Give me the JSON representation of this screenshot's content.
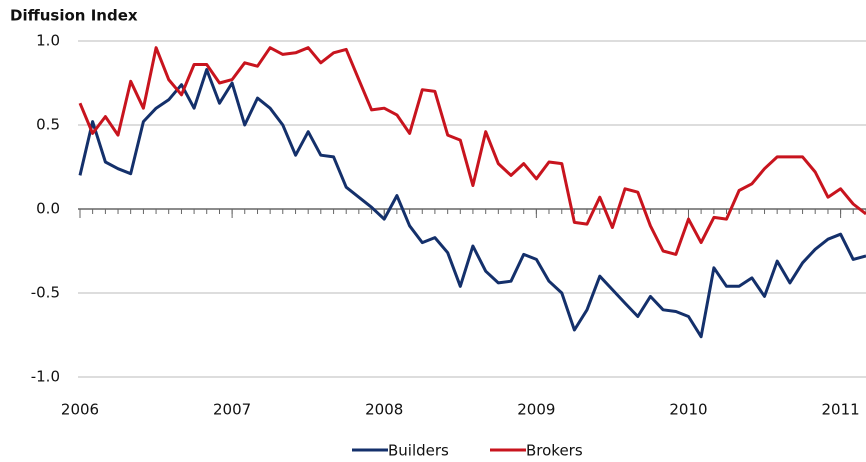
{
  "chart_data": {
    "type": "line",
    "title": "Diffusion Index",
    "x": [
      2006,
      2006.083,
      2006.167,
      2006.25,
      2006.333,
      2006.417,
      2006.5,
      2006.583,
      2006.667,
      2006.75,
      2006.833,
      2006.917,
      2007,
      2007.083,
      2007.167,
      2007.25,
      2007.333,
      2007.417,
      2007.5,
      2007.583,
      2007.667,
      2007.75,
      2007.833,
      2007.917,
      2008,
      2008.083,
      2008.167,
      2008.25,
      2008.333,
      2008.417,
      2008.5,
      2008.583,
      2008.667,
      2008.75,
      2008.833,
      2008.917,
      2009,
      2009.083,
      2009.167,
      2009.25,
      2009.333,
      2009.417,
      2009.5,
      2009.583,
      2009.667,
      2009.75,
      2009.833,
      2009.917,
      2010,
      2010.083,
      2010.167,
      2010.25,
      2010.333,
      2010.417,
      2010.5,
      2010.583,
      2010.667,
      2010.75,
      2010.833,
      2010.917,
      2011,
      2011.083,
      2011.167
    ],
    "series": [
      {
        "name": "Builders",
        "color": "#14306b",
        "values": [
          0.2,
          0.52,
          0.28,
          0.24,
          0.21,
          0.52,
          0.6,
          0.65,
          0.74,
          0.6,
          0.83,
          0.63,
          0.75,
          0.5,
          0.66,
          0.6,
          0.5,
          0.32,
          0.46,
          0.32,
          0.31,
          0.13,
          0.07,
          0.01,
          -0.06,
          0.08,
          -0.1,
          -0.2,
          -0.17,
          -0.26,
          -0.46,
          -0.22,
          -0.37,
          -0.44,
          -0.43,
          -0.27,
          -0.3,
          -0.43,
          -0.5,
          -0.72,
          -0.6,
          -0.4,
          -0.48,
          -0.56,
          -0.64,
          -0.52,
          -0.6,
          -0.61,
          -0.64,
          -0.76,
          -0.35,
          -0.46,
          -0.46,
          -0.41,
          -0.52,
          -0.31,
          -0.44,
          -0.32,
          -0.24,
          -0.18,
          -0.15,
          -0.3,
          -0.28
        ]
      },
      {
        "name": "Brokers",
        "color": "#c8141e",
        "values": [
          0.63,
          0.45,
          0.55,
          0.44,
          0.76,
          0.6,
          0.96,
          0.77,
          0.68,
          0.86,
          0.86,
          0.75,
          0.77,
          0.87,
          0.85,
          0.96,
          0.92,
          0.93,
          0.96,
          0.87,
          0.93,
          0.95,
          0.77,
          0.59,
          0.6,
          0.56,
          0.45,
          0.71,
          0.7,
          0.44,
          0.41,
          0.14,
          0.46,
          0.27,
          0.2,
          0.27,
          0.18,
          0.28,
          0.27,
          -0.08,
          -0.09,
          0.07,
          -0.11,
          0.12,
          0.1,
          -0.1,
          -0.25,
          -0.27,
          -0.06,
          -0.2,
          -0.05,
          -0.06,
          0.11,
          0.15,
          0.24,
          0.31,
          0.31,
          0.31,
          0.22,
          0.07,
          0.12,
          0.03,
          -0.03
        ]
      }
    ],
    "xlim": [
      2006,
      2011.167
    ],
    "xticks": [
      2006,
      2007,
      2008,
      2009,
      2010,
      2011
    ],
    "ylim": [
      -1.0,
      1.0
    ],
    "yticks": [
      {
        "value": 1.0,
        "label": "1.0"
      },
      {
        "value": 0.5,
        "label": "0.5"
      },
      {
        "value": 0.0,
        "label": "0.0"
      },
      {
        "value": -0.5,
        "label": "-0.5"
      },
      {
        "value": -1.0,
        "label": "-1.0"
      }
    ],
    "grid": true,
    "legend": "bottom"
  }
}
